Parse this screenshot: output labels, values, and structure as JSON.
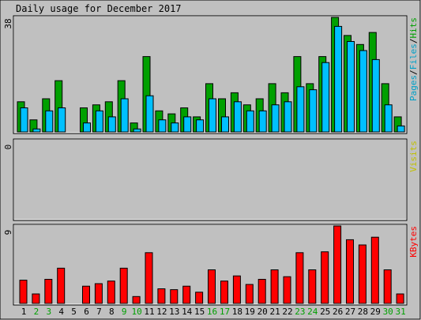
{
  "chart_data": {
    "type": "bar",
    "title": "Daily usage for December 2017",
    "categories": [
      "1",
      "2",
      "3",
      "4",
      "5",
      "6",
      "7",
      "8",
      "9",
      "10",
      "11",
      "12",
      "13",
      "14",
      "15",
      "16",
      "17",
      "18",
      "19",
      "20",
      "21",
      "22",
      "23",
      "24",
      "25",
      "26",
      "27",
      "28",
      "29",
      "30",
      "31"
    ],
    "weekend_days": [
      "2",
      "3",
      "9",
      "10",
      "16",
      "17",
      "23",
      "24",
      "30",
      "31"
    ],
    "colors": {
      "background": "#c0c0c0",
      "hits": "#00a000",
      "files": "#00c0ff",
      "kbytes": "#ff0000",
      "visits": "#c0c000",
      "weekday_label": "#000000",
      "weekend_label": "#00a000"
    },
    "panels": [
      {
        "legend": [
          {
            "text": "Pages",
            "color": "#00a0c8"
          },
          {
            "text": "/",
            "color": "#000000"
          },
          {
            "text": "Files",
            "color": "#00a0c8"
          },
          {
            "text": "/",
            "color": "#000000"
          },
          {
            "text": "Hits",
            "color": "#00a000"
          }
        ],
        "ymax_label": "38",
        "ylim": [
          0,
          38
        ],
        "series": [
          {
            "name": "Hits",
            "values": [
              10,
              4,
              11,
              17,
              0,
              8,
              9,
              10,
              17,
              3,
              25,
              7,
              6,
              8,
              5,
              16,
              11,
              13,
              9,
              11,
              16,
              13,
              25,
              16,
              25,
              38,
              32,
              29,
              33,
              16,
              5
            ]
          },
          {
            "name": "Files",
            "values": [
              8,
              1,
              7,
              8,
              0,
              3,
              7,
              5,
              11,
              1,
              12,
              4,
              3,
              5,
              4,
              11,
              5,
              10,
              7,
              7,
              9,
              10,
              15,
              14,
              23,
              35,
              30,
              27,
              24,
              9,
              2
            ]
          }
        ]
      },
      {
        "legend": [
          {
            "text": "Visits",
            "color": "#c0c000"
          }
        ],
        "ymax_label": "0",
        "ylim": [
          0,
          1
        ],
        "series": [
          {
            "name": "Visits",
            "values": []
          }
        ]
      },
      {
        "legend": [
          {
            "text": "KBytes",
            "color": "#ff0000"
          }
        ],
        "ymax_label": "9",
        "ylim": [
          0,
          9
        ],
        "series": [
          {
            "name": "KBytes",
            "values": [
              2.7,
              1.1,
              2.8,
              4.1,
              0,
              2.0,
              2.3,
              2.6,
              4.1,
              0.8,
              5.9,
              1.7,
              1.6,
              2.0,
              1.3,
              3.9,
              2.6,
              3.2,
              2.2,
              2.8,
              3.9,
              3.1,
              5.9,
              3.9,
              6.0,
              9.0,
              7.4,
              6.8,
              7.7,
              3.9,
              1.1
            ]
          }
        ]
      }
    ]
  }
}
